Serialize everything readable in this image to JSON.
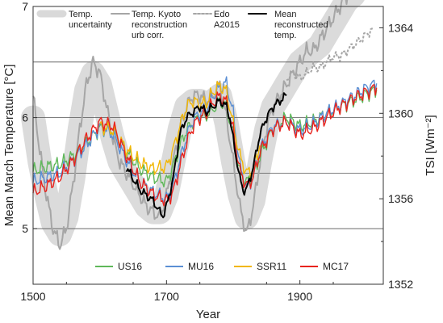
{
  "chart_data": {
    "type": "line",
    "xlabel": "Year",
    "ylabel_left": "Mean March Temperature [°C]",
    "ylabel_right": "TSI [Wm⁻²]",
    "xlim": [
      1500,
      2025
    ],
    "ylim_left": [
      4.5,
      7
    ],
    "ylim_right": [
      1352,
      1365
    ],
    "x_ticks": [
      1500,
      1700,
      1900
    ],
    "x_tick_labels": [
      "1500",
      "1700",
      "1900"
    ],
    "y_left_ticks": [
      5,
      6,
      7
    ],
    "y_left_tick_labels": [
      "5",
      "6",
      "7"
    ],
    "y_right_ticks": [
      1352,
      1356,
      1360,
      1364
    ],
    "y_right_tick_labels": [
      "1352",
      "1356",
      "1360",
      "1364"
    ],
    "gridlines_left": [
      5.0,
      5.5,
      6.0,
      6.5
    ],
    "legend_top": [
      {
        "key": "uncertainty",
        "lines": [
          "Temp.",
          "uncertainty"
        ]
      },
      {
        "key": "kyoto",
        "lines": [
          "Temp. Kyoto",
          "reconstruction",
          "urb corr."
        ]
      },
      {
        "key": "edo",
        "lines": [
          "Edo",
          "A2015"
        ]
      },
      {
        "key": "mean",
        "lines": [
          "Mean",
          "reconstructed",
          "temp."
        ]
      }
    ],
    "legend_bottom": [
      {
        "key": "us16",
        "label": "US16"
      },
      {
        "key": "mu16",
        "label": "MU16"
      },
      {
        "key": "ssr11",
        "label": "SSR11"
      },
      {
        "key": "mc17",
        "label": "MC17"
      }
    ],
    "colors": {
      "uncertainty": "#d9d9d9",
      "kyoto": "#a6a6a6",
      "edo": "#a6a6a6",
      "mean": "#000000",
      "us16": "#5fb85a",
      "mu16": "#5b8fd4",
      "ssr11": "#f2b705",
      "mc17": "#e8231d",
      "grid": "#555555"
    },
    "series": [
      {
        "key": "mean",
        "name": "Mean reconstructed temp.",
        "axis": "left",
        "x": [
          1640,
          1650,
          1660,
          1670,
          1680,
          1690,
          1695,
          1700,
          1710,
          1720,
          1730,
          1740,
          1750,
          1760,
          1770,
          1780,
          1790,
          1795,
          1800,
          1810,
          1815,
          1820,
          1830,
          1840,
          1850,
          1860,
          1870,
          1880
        ],
        "y": [
          5.55,
          5.45,
          5.35,
          5.3,
          5.25,
          5.15,
          5.12,
          5.2,
          5.45,
          5.85,
          6.0,
          6.05,
          6.1,
          6.05,
          6.1,
          6.15,
          6.1,
          6.0,
          5.8,
          5.45,
          5.35,
          5.35,
          5.55,
          5.85,
          6.0,
          6.1,
          6.15,
          6.2
        ]
      },
      {
        "key": "kyoto",
        "name": "Temp. Kyoto reconstruction urb corr.",
        "axis": "left",
        "x": [
          1500,
          1510,
          1520,
          1530,
          1540,
          1550,
          1560,
          1570,
          1580,
          1590,
          1600,
          1610,
          1620,
          1630,
          1640,
          1650,
          1660,
          1670,
          1680,
          1690,
          1700,
          1710,
          1720,
          1730,
          1740,
          1750,
          1760,
          1770,
          1780,
          1790,
          1800,
          1810,
          1820,
          1830,
          1840,
          1850,
          1860,
          1870,
          1880,
          1890,
          1900,
          1910,
          1920,
          1930,
          1940,
          1950,
          1960,
          1970,
          1980,
          1990
        ],
        "y": [
          6.2,
          5.7,
          5.3,
          5.0,
          4.85,
          5.0,
          5.4,
          5.9,
          6.3,
          6.5,
          6.4,
          6.1,
          5.8,
          5.6,
          5.5,
          5.4,
          5.3,
          5.2,
          5.15,
          5.1,
          5.3,
          5.6,
          5.9,
          6.1,
          6.2,
          6.2,
          6.15,
          6.2,
          6.3,
          6.0,
          5.6,
          5.2,
          4.95,
          5.2,
          5.6,
          5.9,
          6.1,
          6.2,
          6.3,
          6.4,
          6.5,
          6.6,
          6.6,
          6.7,
          6.8,
          6.9,
          7.0,
          7.1,
          7.2,
          7.3
        ]
      },
      {
        "key": "edo",
        "name": "Edo A2015",
        "axis": "left",
        "x": [
          1880,
          1890,
          1900,
          1910,
          1920,
          1930,
          1940,
          1950,
          1960,
          1970,
          1980,
          1990,
          2000,
          2010
        ],
        "y": [
          6.35,
          6.4,
          6.35,
          6.4,
          6.45,
          6.45,
          6.5,
          6.55,
          6.55,
          6.6,
          6.65,
          6.7,
          6.75,
          6.8
        ]
      },
      {
        "key": "us16",
        "name": "US16",
        "axis": "right",
        "x": [
          1500,
          1520,
          1540,
          1560,
          1580,
          1600,
          1620,
          1640,
          1660,
          1680,
          1700,
          1710,
          1720,
          1730,
          1740,
          1750,
          1760,
          1770,
          1780,
          1790,
          1800,
          1810,
          1820,
          1830,
          1840,
          1860,
          1880,
          1900,
          1920,
          1940,
          1960,
          1980,
          2000,
          2015
        ],
        "y": [
          1357.3,
          1357.5,
          1357.6,
          1358.0,
          1358.6,
          1359.3,
          1359.2,
          1358.2,
          1357.4,
          1357.0,
          1356.8,
          1357.5,
          1358.5,
          1359.2,
          1359.6,
          1359.8,
          1359.9,
          1360.2,
          1360.6,
          1360.3,
          1359.0,
          1357.2,
          1356.8,
          1357.0,
          1358.0,
          1359.3,
          1359.8,
          1359.4,
          1359.6,
          1360.0,
          1360.3,
          1360.6,
          1360.9,
          1361.1
        ]
      },
      {
        "key": "mu16",
        "name": "MU16",
        "axis": "right",
        "x": [
          1500,
          1520,
          1540,
          1560,
          1580,
          1600,
          1620,
          1640,
          1660,
          1680,
          1700,
          1710,
          1720,
          1730,
          1740,
          1750,
          1760,
          1770,
          1780,
          1790,
          1800,
          1810,
          1820,
          1830,
          1840,
          1860,
          1880,
          1900,
          1920,
          1940,
          1960,
          1980,
          2000,
          2015
        ],
        "y": [
          1356.8,
          1357.0,
          1357.2,
          1357.8,
          1358.5,
          1359.4,
          1359.0,
          1357.8,
          1356.8,
          1356.3,
          1356.0,
          1356.6,
          1357.8,
          1358.9,
          1359.7,
          1360.0,
          1360.2,
          1360.8,
          1361.2,
          1361.4,
          1360.0,
          1357.5,
          1356.5,
          1357.0,
          1358.3,
          1359.4,
          1359.6,
          1359.2,
          1359.5,
          1360.0,
          1360.4,
          1360.8,
          1361.2,
          1361.4
        ]
      },
      {
        "key": "ssr11",
        "name": "SSR11",
        "axis": "right",
        "x": [
          1600,
          1620,
          1640,
          1660,
          1680,
          1700,
          1710,
          1720,
          1730,
          1740,
          1750,
          1760,
          1770,
          1780,
          1790,
          1800,
          1810,
          1820,
          1830,
          1840
        ],
        "y": [
          1359.4,
          1359.2,
          1358.3,
          1357.7,
          1357.4,
          1357.5,
          1358.3,
          1359.4,
          1360.3,
          1360.6,
          1360.4,
          1360.5,
          1361.0,
          1361.3,
          1361.0,
          1359.5,
          1358.0,
          1357.2,
          1357.4,
          1358.5
        ]
      },
      {
        "key": "mc17",
        "name": "MC17",
        "axis": "right",
        "x": [
          1500,
          1520,
          1540,
          1560,
          1580,
          1600,
          1620,
          1640,
          1660,
          1680,
          1700,
          1710,
          1720,
          1730,
          1740,
          1750,
          1760,
          1770,
          1780,
          1790,
          1800,
          1810,
          1820,
          1830,
          1840,
          1860,
          1880,
          1900,
          1920,
          1940,
          1960,
          1980,
          2000,
          2015
        ],
        "y": [
          1356.3,
          1356.6,
          1357.0,
          1357.8,
          1358.8,
          1359.6,
          1359.4,
          1358.0,
          1356.8,
          1356.2,
          1355.9,
          1356.3,
          1357.5,
          1358.6,
          1359.4,
          1359.8,
          1360.0,
          1360.5,
          1360.8,
          1360.5,
          1359.2,
          1357.3,
          1356.6,
          1357.0,
          1358.2,
          1359.3,
          1359.6,
          1359.0,
          1359.3,
          1359.8,
          1360.3,
          1360.7,
          1361.0,
          1361.2
        ]
      }
    ],
    "uncertainty_band": {
      "axis": "left",
      "x": [
        1500,
        1510,
        1520,
        1530,
        1540,
        1550,
        1560,
        1570,
        1580,
        1590,
        1600,
        1610,
        1620,
        1630,
        1640,
        1650,
        1660,
        1670,
        1680,
        1690,
        1700,
        1710,
        1720,
        1730,
        1740,
        1750,
        1760,
        1770,
        1780,
        1790,
        1800,
        1810,
        1820,
        1830,
        1840,
        1850,
        1860,
        1870,
        1880,
        1890,
        1900,
        1910,
        1920,
        1930,
        1940,
        1950,
        1960,
        1970,
        1980,
        1990
      ],
      "center": [
        6.0,
        5.6,
        5.3,
        5.05,
        4.95,
        5.1,
        5.45,
        5.9,
        6.25,
        6.4,
        6.3,
        6.05,
        5.8,
        5.6,
        5.5,
        5.4,
        5.3,
        5.2,
        5.15,
        5.15,
        5.3,
        5.6,
        5.9,
        6.1,
        6.15,
        6.15,
        6.1,
        6.15,
        6.2,
        5.95,
        5.6,
        5.3,
        5.1,
        5.25,
        5.6,
        5.9,
        6.1,
        6.2,
        6.3,
        6.4,
        6.5,
        6.55,
        6.6,
        6.65,
        6.75,
        6.85,
        6.95,
        7.05,
        7.1,
        7.2
      ]
    }
  }
}
